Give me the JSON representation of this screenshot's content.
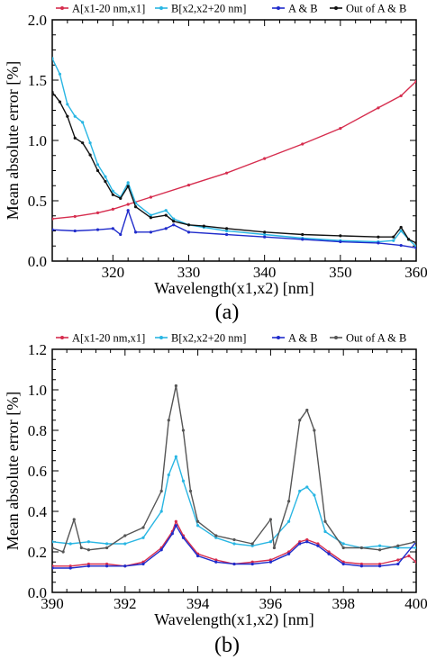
{
  "chart_data": [
    {
      "type": "line",
      "panel_label": "(a)",
      "xlabel": "Wavelength(x1,x2) [nm]",
      "ylabel": "Mean absolute error [%]",
      "xlim": [
        312,
        360
      ],
      "ylim": [
        0,
        2.0
      ],
      "xticks": [
        320,
        330,
        340,
        350,
        360
      ],
      "yticks": [
        0.0,
        0.5,
        1.0,
        1.5,
        2.0
      ],
      "ytick_labels": [
        "0.0",
        "0.5",
        "1.0",
        "1.5",
        "2.0"
      ],
      "grid": false,
      "legend_position": "top",
      "series": [
        {
          "name": "A[x1-20 nm,x1]",
          "color": "#d62d4e",
          "x": [
            312,
            315,
            318,
            320,
            322,
            325,
            330,
            335,
            340,
            345,
            350,
            355,
            358,
            360
          ],
          "y": [
            0.35,
            0.37,
            0.4,
            0.43,
            0.47,
            0.53,
            0.63,
            0.73,
            0.85,
            0.97,
            1.1,
            1.27,
            1.37,
            1.49
          ]
        },
        {
          "name": "B[x2,x2+20 nm]",
          "color": "#29b6e3",
          "x": [
            312,
            313,
            314,
            315,
            316,
            317,
            318,
            319,
            320,
            321,
            322,
            323,
            325,
            327,
            328,
            330,
            332,
            335,
            340,
            345,
            350,
            355,
            357,
            358,
            359,
            360
          ],
          "y": [
            1.68,
            1.55,
            1.3,
            1.2,
            1.15,
            0.98,
            0.8,
            0.7,
            0.58,
            0.53,
            0.65,
            0.48,
            0.38,
            0.42,
            0.35,
            0.3,
            0.28,
            0.25,
            0.22,
            0.19,
            0.17,
            0.16,
            0.17,
            0.25,
            0.18,
            0.12
          ]
        },
        {
          "name": "A & B",
          "color": "#1f2bcb",
          "x": [
            312,
            315,
            318,
            320,
            321,
            322,
            323,
            325,
            327,
            328,
            330,
            335,
            340,
            345,
            350,
            355,
            358,
            360
          ],
          "y": [
            0.26,
            0.25,
            0.26,
            0.27,
            0.22,
            0.42,
            0.24,
            0.24,
            0.27,
            0.3,
            0.24,
            0.22,
            0.2,
            0.18,
            0.16,
            0.15,
            0.13,
            0.11
          ]
        },
        {
          "name": "Out of A & B",
          "color": "#111111",
          "x": [
            312,
            313,
            314,
            315,
            316,
            317,
            318,
            319,
            320,
            321,
            322,
            323,
            325,
            327,
            328,
            330,
            332,
            335,
            340,
            345,
            350,
            355,
            357,
            358,
            359,
            360
          ],
          "y": [
            1.4,
            1.32,
            1.2,
            1.02,
            0.98,
            0.88,
            0.75,
            0.66,
            0.55,
            0.52,
            0.62,
            0.45,
            0.36,
            0.38,
            0.33,
            0.3,
            0.29,
            0.27,
            0.24,
            0.22,
            0.21,
            0.2,
            0.2,
            0.28,
            0.18,
            0.15
          ]
        }
      ]
    },
    {
      "type": "line",
      "panel_label": "(b)",
      "xlabel": "Wavelength(x1,x2) [nm]",
      "ylabel": "Mean absolute error [%]",
      "xlim": [
        390,
        400
      ],
      "ylim": [
        0,
        1.2
      ],
      "xticks": [
        390,
        392,
        394,
        396,
        398,
        400
      ],
      "yticks": [
        0.0,
        0.2,
        0.4,
        0.6,
        0.8,
        1.0,
        1.2
      ],
      "ytick_labels": [
        "0.0",
        "0.2",
        "0.4",
        "0.6",
        "0.8",
        "1.0",
        "1.2"
      ],
      "grid": false,
      "legend_position": "top",
      "series": [
        {
          "name": "A[x1-20 nm,x1]",
          "color": "#d62d4e",
          "x": [
            390,
            390.5,
            391,
            391.5,
            392,
            392.5,
            393,
            393.3,
            393.4,
            393.6,
            394,
            394.5,
            395,
            395.5,
            396,
            396.5,
            396.8,
            397,
            397.3,
            397.6,
            398,
            398.5,
            399,
            399.5,
            399.8,
            400
          ],
          "y": [
            0.13,
            0.13,
            0.14,
            0.14,
            0.13,
            0.15,
            0.22,
            0.3,
            0.35,
            0.28,
            0.19,
            0.16,
            0.14,
            0.15,
            0.16,
            0.2,
            0.25,
            0.26,
            0.24,
            0.2,
            0.15,
            0.14,
            0.14,
            0.16,
            0.18,
            0.15
          ]
        },
        {
          "name": "B[x2,x2+20 nm]",
          "color": "#29b6e3",
          "x": [
            390,
            390.5,
            391,
            391.5,
            392,
            392.5,
            393,
            393.2,
            393.4,
            393.6,
            394,
            394.5,
            395,
            395.5,
            396,
            396.5,
            396.8,
            397,
            397.2,
            397.5,
            398,
            398.5,
            399,
            399.5,
            400
          ],
          "y": [
            0.25,
            0.24,
            0.25,
            0.24,
            0.24,
            0.27,
            0.4,
            0.58,
            0.67,
            0.55,
            0.33,
            0.27,
            0.24,
            0.23,
            0.25,
            0.35,
            0.5,
            0.52,
            0.48,
            0.3,
            0.24,
            0.22,
            0.23,
            0.22,
            0.22
          ]
        },
        {
          "name": "A & B",
          "color": "#1f2bcb",
          "x": [
            390,
            390.5,
            391,
            391.5,
            392,
            392.5,
            393,
            393.3,
            393.4,
            393.6,
            394,
            394.5,
            395,
            395.5,
            396,
            396.5,
            396.8,
            397,
            397.3,
            397.6,
            398,
            398.5,
            399,
            399.5,
            400
          ],
          "y": [
            0.12,
            0.12,
            0.13,
            0.13,
            0.13,
            0.14,
            0.21,
            0.29,
            0.33,
            0.27,
            0.18,
            0.15,
            0.14,
            0.14,
            0.15,
            0.19,
            0.24,
            0.25,
            0.23,
            0.19,
            0.14,
            0.13,
            0.13,
            0.14,
            0.25
          ]
        },
        {
          "name": "Out of A & B",
          "color": "#555555",
          "x": [
            390,
            390.3,
            390.6,
            390.8,
            391,
            391.5,
            392,
            392.5,
            393,
            393.2,
            393.4,
            393.6,
            393.8,
            394,
            394.5,
            395,
            395.5,
            396,
            396.1,
            396.5,
            396.8,
            397,
            397.2,
            397.5,
            398,
            398.5,
            399,
            399.5,
            400
          ],
          "y": [
            0.22,
            0.2,
            0.36,
            0.22,
            0.21,
            0.22,
            0.28,
            0.32,
            0.5,
            0.85,
            1.02,
            0.8,
            0.5,
            0.35,
            0.28,
            0.26,
            0.24,
            0.36,
            0.22,
            0.45,
            0.85,
            0.9,
            0.8,
            0.35,
            0.22,
            0.22,
            0.21,
            0.23,
            0.25
          ]
        }
      ]
    }
  ]
}
